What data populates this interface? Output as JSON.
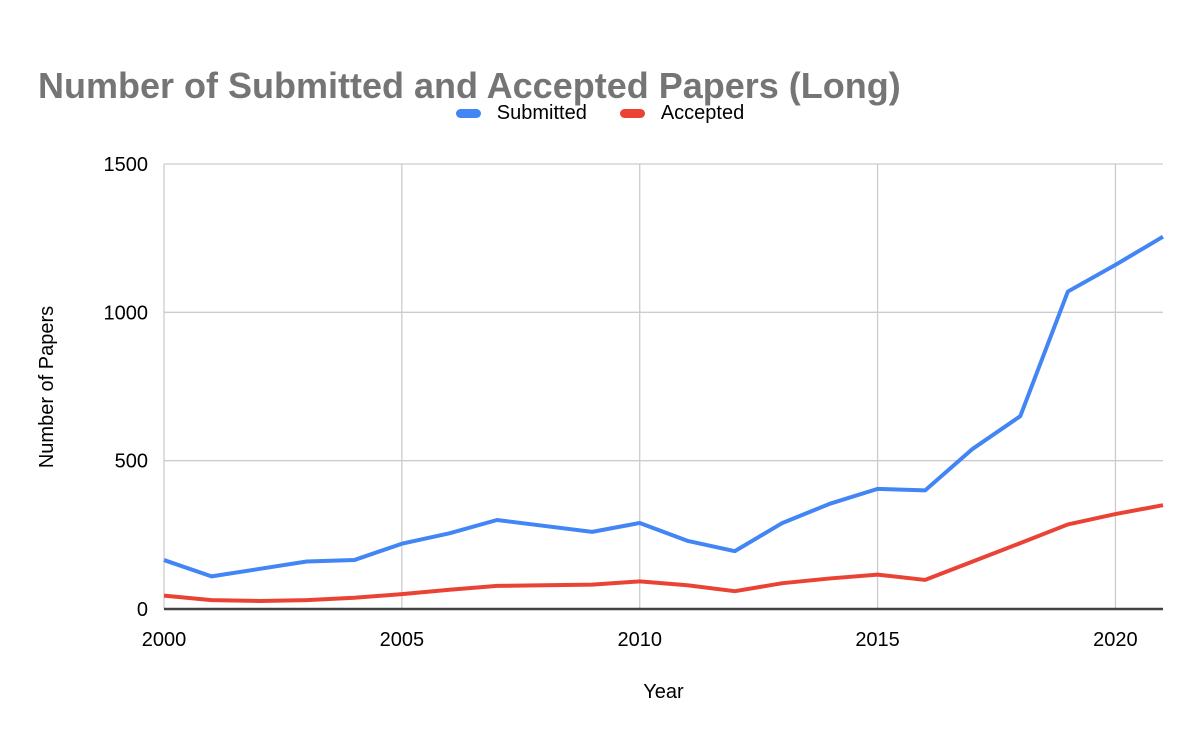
{
  "title": "Number of Submitted and Accepted Papers (Long)",
  "colors": {
    "submitted_blue": "#4285F4",
    "accepted_red": "#EA4335",
    "title_gray": "#757575",
    "gridline_gray": "#cccccc",
    "axis_dark": "#424242",
    "label_black": "#000000"
  },
  "chart_data": {
    "type": "line",
    "title": "Number of Submitted and Accepted Papers (Long)",
    "xlabel": "Year",
    "ylabel": "Number of Papers",
    "x": [
      2000,
      2001,
      2002,
      2003,
      2004,
      2005,
      2006,
      2007,
      2008,
      2009,
      2010,
      2011,
      2012,
      2013,
      2014,
      2015,
      2016,
      2017,
      2018,
      2019,
      2020,
      2021
    ],
    "series": [
      {
        "name": "Submitted",
        "color": "#4285F4",
        "values": [
          165,
          110,
          135,
          160,
          165,
          220,
          255,
          300,
          280,
          260,
          290,
          230,
          195,
          290,
          355,
          405,
          400,
          540,
          650,
          1070,
          1160,
          1255
        ]
      },
      {
        "name": "Accepted",
        "color": "#EA4335",
        "values": [
          45,
          30,
          27,
          30,
          38,
          50,
          65,
          78,
          80,
          82,
          93,
          80,
          60,
          87,
          103,
          116,
          98,
          160,
          222,
          285,
          320,
          350
        ]
      }
    ],
    "xlim": [
      2000,
      2021
    ],
    "ylim": [
      0,
      1500
    ],
    "x_ticks": [
      2000,
      2005,
      2010,
      2015,
      2020
    ],
    "y_ticks": [
      0,
      500,
      1000,
      1500
    ],
    "grid": true,
    "legend_position": "top"
  }
}
